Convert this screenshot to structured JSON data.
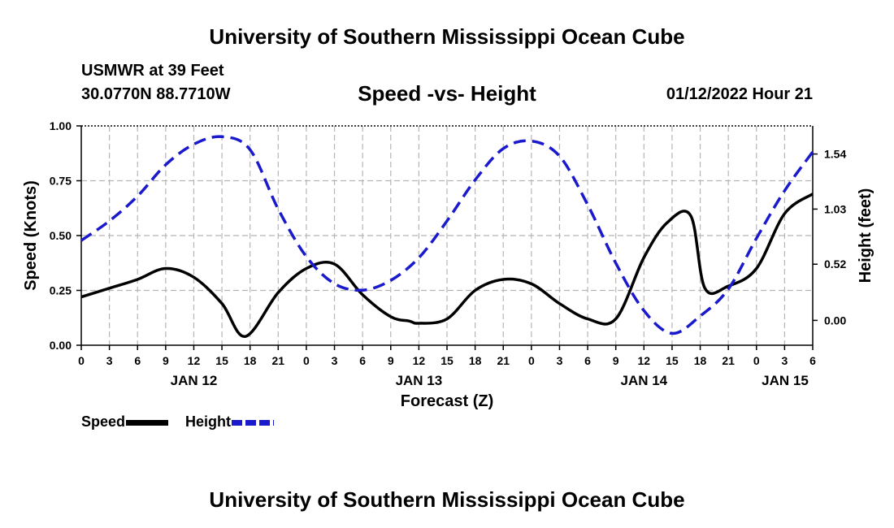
{
  "header": {
    "title": "University of Southern Mississippi Ocean Cube",
    "station": "USMWR at 39 Feet",
    "coords": "30.0770N  88.7710W",
    "subtitle": "Speed -vs- Height",
    "datetime": "01/12/2022 Hour 21"
  },
  "footer": {
    "title": "University of Southern Mississippi Ocean Cube"
  },
  "legend": {
    "speed_label": "Speed",
    "height_label": "Height"
  },
  "chart_data": {
    "type": "line",
    "xlabel": "Forecast (Z)",
    "ylabel_left": "Speed (Knots)",
    "ylabel_right": "Height (feet)",
    "x_unit": "hours from JAN 12 00Z",
    "xlim": [
      0,
      78
    ],
    "ylim_left": [
      0,
      1
    ],
    "ylim_right": [
      -0.23,
      1.8
    ],
    "y_ticks_left": [
      "0.00",
      "0.25",
      "0.50",
      "0.75",
      "1.00"
    ],
    "y_ticks_right": [
      "0.00",
      "0.52",
      "1.03",
      "1.54"
    ],
    "x_tick_labels": [
      "0",
      "3",
      "6",
      "9",
      "12",
      "15",
      "18",
      "21",
      "0",
      "3",
      "6",
      "9",
      "12",
      "15",
      "18",
      "21",
      "0",
      "3",
      "6",
      "9",
      "12",
      "15",
      "18",
      "21",
      "0",
      "3",
      "6"
    ],
    "date_labels": [
      {
        "label": "JAN 12",
        "hour": 12
      },
      {
        "label": "JAN 13",
        "hour": 36
      },
      {
        "label": "JAN 14",
        "hour": 60
      },
      {
        "label": "JAN 15",
        "hour": 78
      }
    ],
    "grid": true,
    "series": [
      {
        "name": "Speed",
        "axis": "left",
        "color": "#000000",
        "style": "solid",
        "x": [
          0,
          3,
          6,
          9,
          12,
          15,
          17.5,
          21,
          24,
          27,
          30,
          33,
          35,
          36,
          39,
          42,
          45,
          48,
          51,
          54,
          57,
          60,
          62.5,
          65,
          66.5,
          69,
          72,
          75,
          78
        ],
        "values": [
          0.22,
          0.26,
          0.3,
          0.35,
          0.31,
          0.19,
          0.04,
          0.24,
          0.35,
          0.37,
          0.23,
          0.13,
          0.11,
          0.1,
          0.12,
          0.25,
          0.3,
          0.28,
          0.19,
          0.12,
          0.12,
          0.4,
          0.56,
          0.59,
          0.26,
          0.27,
          0.35,
          0.6,
          0.69
        ]
      },
      {
        "name": "Height",
        "axis": "right",
        "color": "#1a1acc",
        "style": "dashed",
        "x": [
          0,
          3,
          6,
          9,
          12,
          15,
          18,
          21,
          24,
          27,
          30,
          33,
          36,
          39,
          42,
          45,
          48,
          51,
          54,
          57,
          60,
          63,
          66,
          69,
          72,
          75,
          78
        ],
        "values": [
          0.74,
          0.92,
          1.15,
          1.44,
          1.63,
          1.7,
          1.58,
          1.03,
          0.59,
          0.34,
          0.28,
          0.37,
          0.58,
          0.92,
          1.3,
          1.59,
          1.66,
          1.52,
          1.07,
          0.53,
          0.09,
          -0.12,
          0.04,
          0.29,
          0.76,
          1.2,
          1.56
        ]
      }
    ]
  }
}
